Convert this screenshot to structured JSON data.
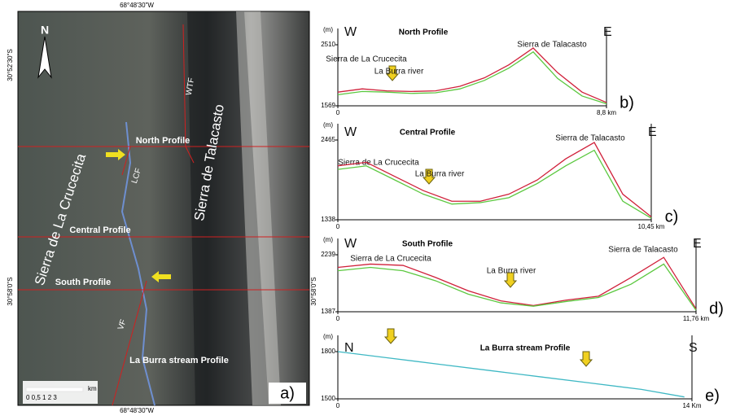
{
  "map": {
    "lon_top": "68°48'30\"W",
    "lon_bottom": "68°48'30\"W",
    "lat_north": "30°52'30\"S",
    "lat_south_left": "30°58'0\"S",
    "lat_south_right": "30°58'0\"S",
    "north": "N",
    "range_west": "Sierra de La Crucecita",
    "range_east": "Sierra de Talacasto",
    "north_profile": "North Profile",
    "central_profile": "Central Profile",
    "south_profile": "South Profile",
    "stream_profile": "La Burra stream Profile",
    "fault_wtf": "WTF",
    "fault_lcf": "LCF",
    "fault_vf": "VF",
    "panel": "a)",
    "scale_unit": "km",
    "scale_ticks": "0  0,5  1     2     3"
  },
  "chart_data": [
    {
      "type": "line",
      "title": "North Profile",
      "y_unit": "(m)",
      "left_label": "W",
      "right_label": "E",
      "panel": "b)",
      "annotations": [
        "Sierra de La Crucecita",
        "La Burra river",
        "Sierra de Talacasto"
      ],
      "x": [
        0,
        0.8,
        1.6,
        2.4,
        3.2,
        4,
        4.8,
        5.6,
        6.4,
        7.2,
        8,
        8.8
      ],
      "series": [
        {
          "color": "#d0203a",
          "values": [
            1780,
            1830,
            1800,
            1790,
            1800,
            1870,
            2000,
            2200,
            2460,
            2080,
            1780,
            1620
          ]
        },
        {
          "color": "#5cc840",
          "values": [
            1740,
            1790,
            1780,
            1760,
            1770,
            1830,
            1960,
            2150,
            2400,
            1990,
            1720,
            1600
          ]
        }
      ],
      "xlim": [
        0,
        8.8
      ],
      "ylim": [
        1569,
        2510
      ],
      "xticks": [
        0,
        {
          "value": 8.8,
          "label": "8,8  km"
        }
      ],
      "yticks": [
        1569,
        2510
      ]
    },
    {
      "type": "line",
      "title": "Central Profile",
      "y_unit": "(m)",
      "left_label": "W",
      "right_label": "E",
      "panel": "c)",
      "annotations": [
        "Sierra de La Crucecita",
        "La Burra river",
        "Sierra de Talacasto"
      ],
      "x": [
        0,
        0.95,
        1.9,
        2.85,
        3.8,
        4.75,
        5.7,
        6.65,
        7.6,
        8.55,
        9.5,
        10.45
      ],
      "series": [
        {
          "color": "#d0203a",
          "values": [
            2100,
            2150,
            1950,
            1750,
            1600,
            1600,
            1700,
            1900,
            2200,
            2430,
            1700,
            1380
          ]
        },
        {
          "color": "#5cc840",
          "values": [
            2050,
            2100,
            1900,
            1700,
            1560,
            1580,
            1650,
            1850,
            2100,
            2320,
            1600,
            1360
          ]
        }
      ],
      "xlim": [
        0,
        10.45
      ],
      "ylim": [
        1338,
        2465
      ],
      "xticks": [
        0,
        {
          "value": 10.45,
          "label": "10,45 km"
        }
      ],
      "yticks": [
        1338,
        2465
      ]
    },
    {
      "type": "line",
      "title": "South Profile",
      "y_unit": "(m)",
      "left_label": "W",
      "right_label": "E",
      "panel": "d)",
      "annotations": [
        "Sierra de La Crucecita",
        "La Burra river",
        "Sierra de Talacasto"
      ],
      "x": [
        0,
        1.07,
        2.14,
        3.21,
        4.28,
        5.35,
        6.42,
        7.49,
        8.56,
        9.63,
        10.7,
        11.76
      ],
      "series": [
        {
          "color": "#d0203a",
          "values": [
            2050,
            2100,
            2080,
            1900,
            1700,
            1550,
            1480,
            1560,
            1620,
            1900,
            2200,
            1430
          ]
        },
        {
          "color": "#5cc840",
          "values": [
            2000,
            2050,
            2000,
            1850,
            1650,
            1520,
            1470,
            1540,
            1600,
            1800,
            2100,
            1410
          ]
        }
      ],
      "xlim": [
        0,
        11.76
      ],
      "ylim": [
        1387,
        2239
      ],
      "xticks": [
        0,
        {
          "value": 11.76,
          "label": "11,76 km"
        }
      ],
      "yticks": [
        1387,
        2239
      ]
    },
    {
      "type": "line",
      "title": "La Burra stream Profile",
      "y_unit": "(m)",
      "left_label": "N",
      "right_label": "S",
      "panel": "e)",
      "annotations": [],
      "x": [
        0,
        2,
        4,
        6,
        8,
        10,
        12,
        13.7
      ],
      "series": [
        {
          "color": "#3fb8c4",
          "values": [
            1800,
            1760,
            1720,
            1680,
            1640,
            1600,
            1560,
            1512
          ]
        }
      ],
      "xlim": [
        0,
        14
      ],
      "ylim": [
        1500,
        1800
      ],
      "xticks": [
        0,
        {
          "value": 14,
          "label": "14 Km"
        }
      ],
      "yticks": [
        1500,
        1800
      ]
    }
  ]
}
